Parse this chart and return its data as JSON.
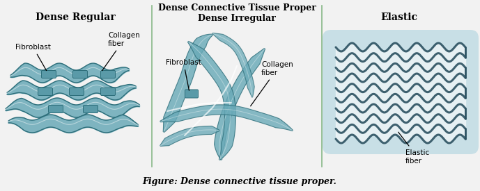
{
  "figure_width": 6.89,
  "figure_height": 2.75,
  "dpi": 100,
  "bg_color": "#f2f2f2",
  "panel_bg": "#edf2f4",
  "teal_dark": "#2d6e7a",
  "teal_mid": "#4a8a96",
  "teal_fill": "#6aaab8",
  "teal_light": "#9dc8d0",
  "elastic_bg": "#c8dfe6",
  "elastic_fiber_color": "#2a5060",
  "title_color": "#000000",
  "annot_color": "#008080",
  "label_black": "#000000",
  "divider_color": "#88b888",
  "caption": "Figure: Dense connective tissue proper.",
  "panel1_title": "Dense Regular",
  "panel2_title_line1": "Dense Connective Tissue Proper",
  "panel2_title_line2": "Dense Irregular",
  "panel3_title": "Elastic",
  "p1_label1": "Fibroblast",
  "p1_label2": "Collagen\nfiber",
  "p2_label1": "Fibroblast",
  "p2_label2": "Collagen\nfiber",
  "p3_label1": "Elastic\nfiber"
}
